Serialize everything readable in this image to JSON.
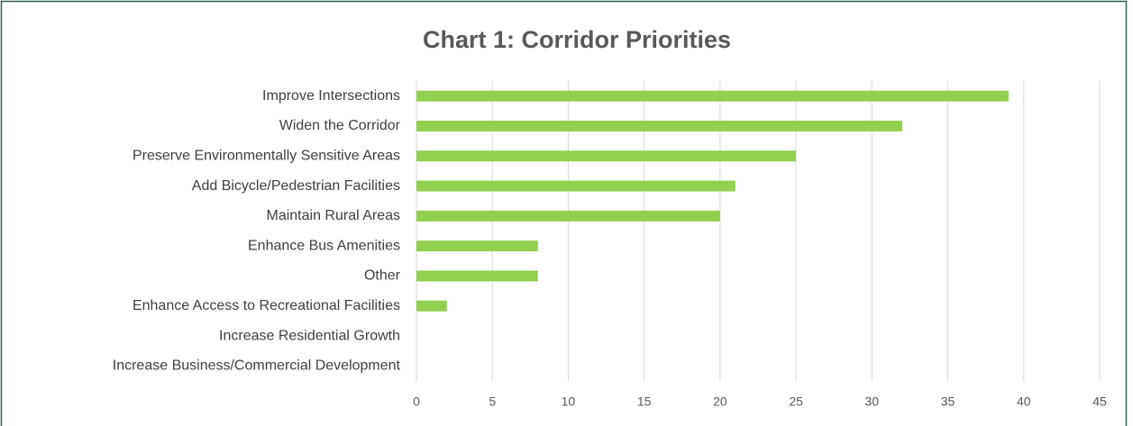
{
  "chart_data": {
    "type": "barh",
    "title": "Chart 1: Corridor Priorities",
    "categories": [
      "Improve Intersections",
      "Widen the Corridor",
      "Preserve Environmentally Sensitive Areas",
      "Add Bicycle/Pedestrian Facilities",
      "Maintain Rural Areas",
      "Enhance Bus Amenities",
      "Other",
      "Enhance Access to Recreational Facilities",
      "Increase Residential Growth",
      "Increase Business/Commercial Development"
    ],
    "values": [
      39,
      32,
      25,
      21,
      20,
      8,
      8,
      2,
      0,
      0
    ],
    "color": "#92d050",
    "xlim": [
      0,
      45
    ],
    "xticks": [
      0,
      5,
      10,
      15,
      20,
      25,
      30,
      35,
      40,
      45
    ],
    "grid": true
  }
}
